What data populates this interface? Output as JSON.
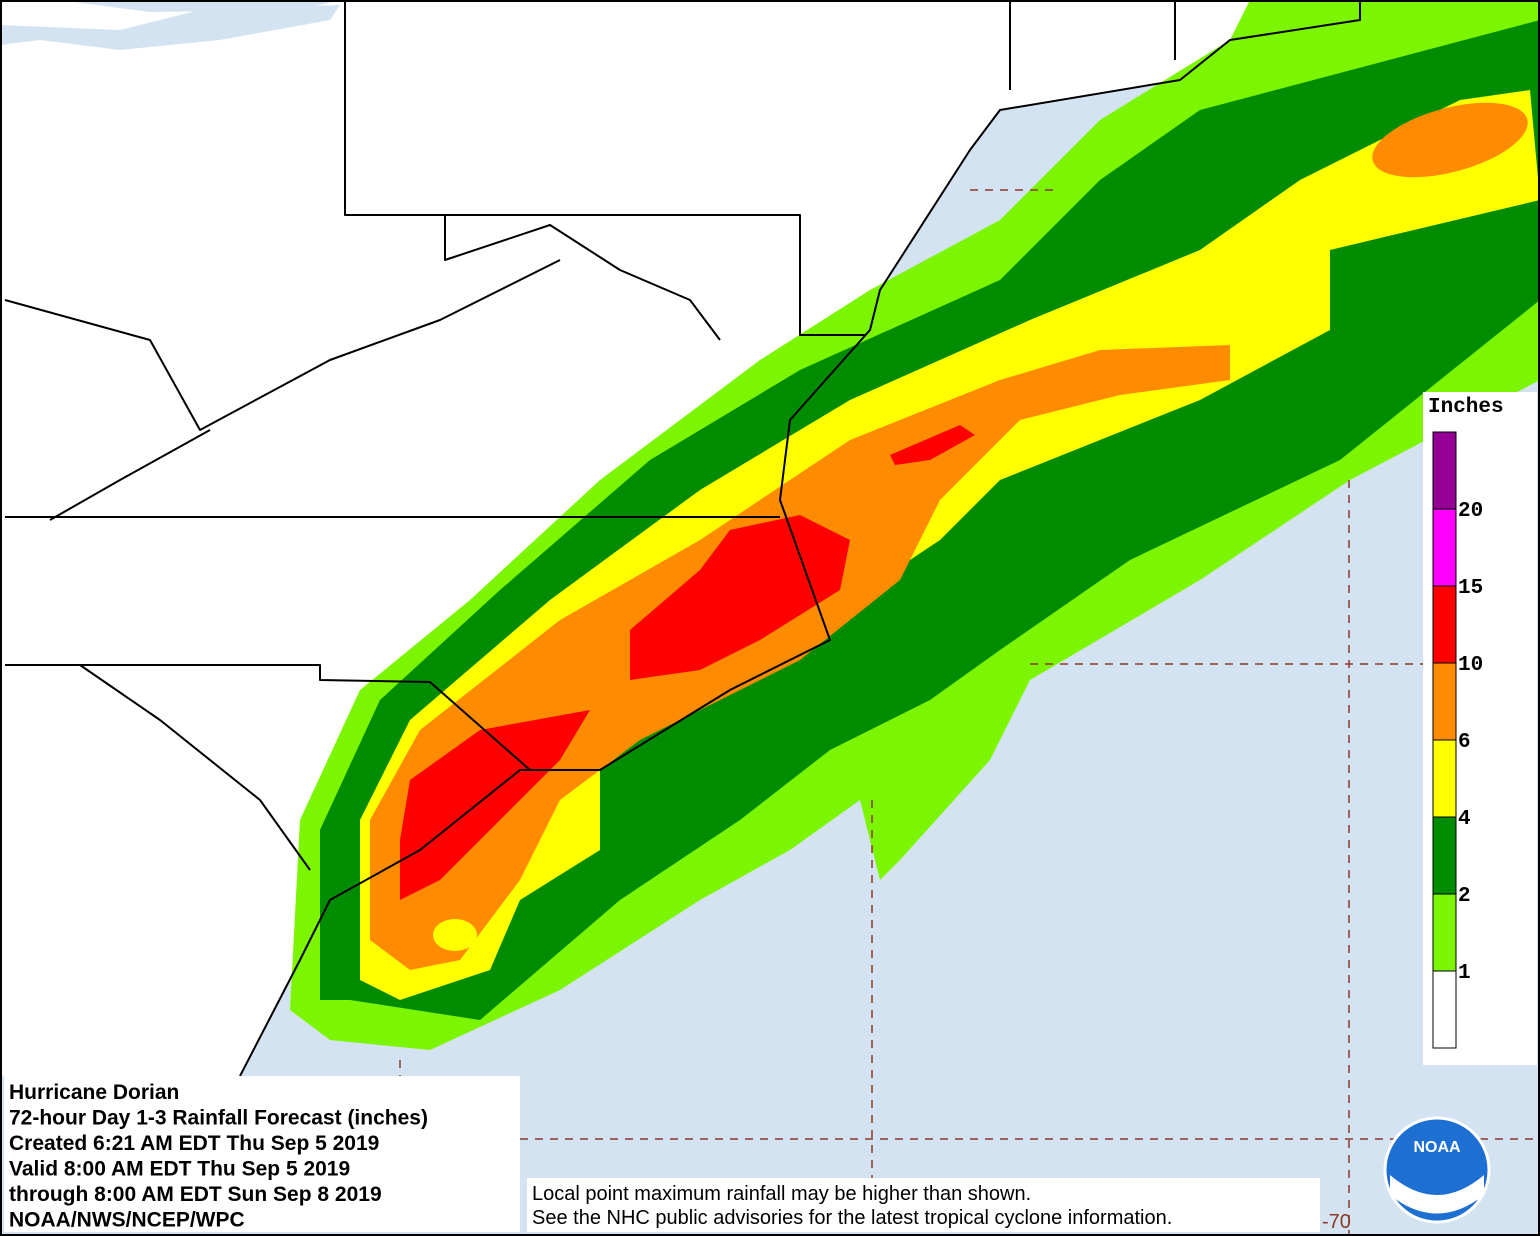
{
  "map": {
    "title_lines": [
      "Hurricane Dorian",
      "72-hour Day 1-3 Rainfall Forecast (inches)",
      "Created 6:21 AM EDT Thu Sep 5 2019",
      "Valid 8:00 AM EDT Thu Sep 5 2019",
      "through 8:00 AM EDT Sun Sep 8 2019",
      "NOAA/NWS/NCEP/WPC"
    ],
    "note_lines": [
      "Local point maximum rainfall may be higher than shown.",
      "See the NHC public advisories for the latest tropical cyclone information."
    ],
    "longitude_label": "-70",
    "logo_text": "NOAA",
    "legend": {
      "title": "Inches",
      "levels": [
        1,
        2,
        4,
        6,
        10,
        15,
        20
      ],
      "colors": [
        "#ffffff",
        "#7cf500",
        "#008c00",
        "#ffff00",
        "#ff8c00",
        "#ff0000",
        "#ff00ff",
        "#930093"
      ]
    }
  }
}
